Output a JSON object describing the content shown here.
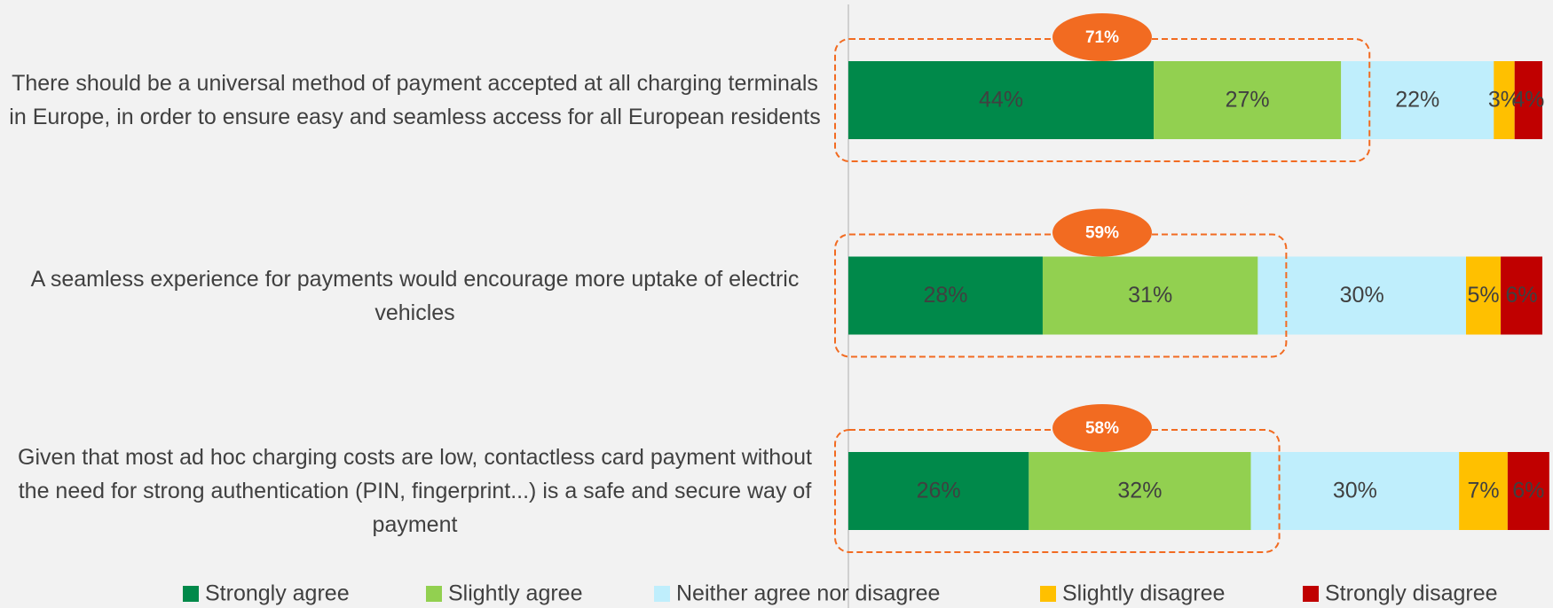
{
  "chart_data": {
    "type": "stacked_bar_horizontal",
    "categories": [
      "There should be a universal method of payment accepted at all charging terminals in Europe, in order to ensure easy and seamless access for all European residents",
      "A seamless experience for payments would encourage more uptake of electric vehicles",
      "Given that most ad hoc charging costs are low, contactless card payment without the need for strong authentication (PIN, fingerprint...) is a safe and secure way of payment"
    ],
    "series": [
      {
        "name": "Strongly agree",
        "color": "#00894a",
        "values": [
          44,
          28,
          26
        ],
        "value_labels": [
          "44%",
          "28%",
          "26%"
        ]
      },
      {
        "name": "Slightly agree",
        "color": "#92d050",
        "values": [
          27,
          31,
          32
        ],
        "value_labels": [
          "27%",
          "31%",
          "32%"
        ]
      },
      {
        "name": "Neither agree nor disagree",
        "color": "#bfeefc",
        "values": [
          22,
          30,
          30
        ],
        "value_labels": [
          "22%",
          "30%",
          "30%"
        ]
      },
      {
        "name": "Slightly disagree",
        "color": "#ffc000",
        "values": [
          3,
          5,
          7
        ],
        "value_labels": [
          "3%",
          "5%",
          "7%"
        ]
      },
      {
        "name": "Strongly disagree",
        "color": "#c00000",
        "values": [
          4,
          6,
          6
        ],
        "value_labels": [
          "4%",
          "6%",
          "6%"
        ]
      }
    ],
    "top_two": {
      "values": [
        71,
        59,
        58
      ],
      "value_labels": [
        "71%",
        "59%",
        "58%"
      ],
      "color": "#f26b21"
    },
    "xlim": [
      0,
      100
    ],
    "legend": "bottom"
  }
}
